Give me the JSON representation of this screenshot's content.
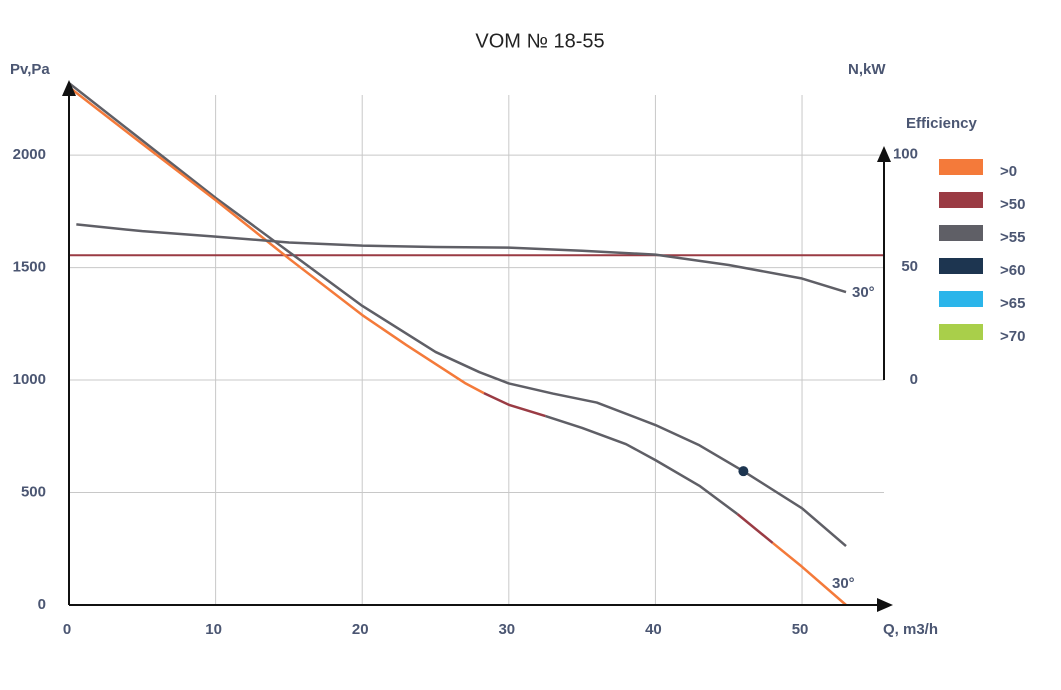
{
  "chart_data": {
    "type": "line",
    "title": "VOM № 18-55",
    "y_label": "Pv,Pa",
    "y2_label": "N,kW",
    "x_label": "Q, m3/h",
    "xlim": [
      0,
      56
    ],
    "xticks": [
      0,
      10,
      20,
      30,
      40,
      50
    ],
    "ylim": [
      0,
      2325
    ],
    "yticks": [
      0,
      500,
      1000,
      1500,
      2000
    ],
    "y2lim": [
      0,
      102
    ],
    "y2ticks": [
      0,
      50,
      100
    ],
    "grid": true,
    "hline": {
      "value": 1555,
      "color": "#9a3b44"
    },
    "marker": {
      "x": 46,
      "y": 595,
      "color": "#1d3550"
    },
    "annotations": [
      "30°",
      "30°"
    ],
    "legend": {
      "title": "Efficiency",
      "position": "right",
      "items": [
        {
          "label": ">0",
          "color": "#f47a3a"
        },
        {
          "label": ">50",
          "color": "#9a3b44"
        },
        {
          "label": ">55",
          "color": "#5f5f66"
        },
        {
          "label": ">60",
          "color": "#1d3550"
        },
        {
          "label": ">65",
          "color": "#2bb5ea"
        },
        {
          "label": ">70",
          "color": "#a9cf4a"
        }
      ]
    },
    "series": [
      {
        "color": "#5f5f66",
        "x": [
          0,
          5,
          10,
          15,
          20,
          25,
          28,
          30,
          33,
          36,
          40,
          43,
          46,
          50,
          53
        ],
        "values": [
          2320,
          2065,
          1810,
          1570,
          1330,
          1125,
          1035,
          985,
          940,
          900,
          800,
          710,
          595,
          430,
          262
        ]
      },
      {
        "color": "#f47a3a",
        "x": [
          0,
          5,
          10,
          15,
          20,
          23,
          27,
          28.3
        ],
        "values": [
          2302,
          2050,
          1800,
          1540,
          1289,
          1156,
          987,
          942
        ]
      },
      {
        "color": "#9a3b44",
        "x": [
          28.3,
          30,
          32.5
        ],
        "values": [
          942,
          890,
          840
        ]
      },
      {
        "color": "#5f5f66",
        "x": [
          32.5,
          35,
          38,
          40,
          43,
          45.6
        ],
        "values": [
          840,
          787,
          715,
          644,
          530,
          404
        ]
      },
      {
        "color": "#9a3b44",
        "x": [
          45.6,
          48
        ],
        "values": [
          404,
          276
        ]
      },
      {
        "color": "#f47a3a",
        "x": [
          48,
          50,
          53
        ],
        "values": [
          276,
          170,
          0
        ]
      },
      {
        "color": "#5f5f66",
        "axis": "y2",
        "x": [
          0.5,
          5,
          10,
          15,
          20,
          25,
          30,
          35,
          40,
          45,
          50,
          53
        ],
        "values": [
          69,
          66,
          63.6,
          61,
          59.6,
          59,
          58.7,
          57.3,
          55.6,
          51,
          45,
          39
        ]
      }
    ]
  }
}
